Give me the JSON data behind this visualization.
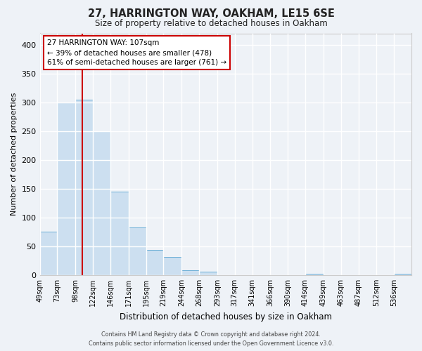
{
  "title": "27, HARRINGTON WAY, OAKHAM, LE15 6SE",
  "subtitle": "Size of property relative to detached houses in Oakham",
  "xlabel": "Distribution of detached houses by size in Oakham",
  "ylabel": "Number of detached properties",
  "bin_labels": [
    "49sqm",
    "73sqm",
    "98sqm",
    "122sqm",
    "146sqm",
    "171sqm",
    "195sqm",
    "219sqm",
    "244sqm",
    "268sqm",
    "293sqm",
    "317sqm",
    "341sqm",
    "366sqm",
    "390sqm",
    "414sqm",
    "439sqm",
    "463sqm",
    "487sqm",
    "512sqm",
    "536sqm"
  ],
  "bin_edges": [
    49,
    73,
    98,
    122,
    146,
    171,
    195,
    219,
    244,
    268,
    293,
    317,
    341,
    366,
    390,
    414,
    439,
    463,
    487,
    512,
    536,
    560
  ],
  "bar_heights": [
    75,
    300,
    305,
    250,
    145,
    83,
    44,
    32,
    9,
    6,
    0,
    0,
    0,
    0,
    0,
    2,
    0,
    0,
    0,
    0,
    2
  ],
  "bar_color": "#ccdff0",
  "bar_edge_color": "#6aaed6",
  "property_line_x": 107,
  "property_line_color": "#cc0000",
  "ylim": [
    0,
    420
  ],
  "yticks": [
    0,
    50,
    100,
    150,
    200,
    250,
    300,
    350,
    400
  ],
  "annotation_text": "27 HARRINGTON WAY: 107sqm\n← 39% of detached houses are smaller (478)\n61% of semi-detached houses are larger (761) →",
  "annotation_box_facecolor": "#ffffff",
  "annotation_box_edgecolor": "#cc0000",
  "footer_line1": "Contains HM Land Registry data © Crown copyright and database right 2024.",
  "footer_line2": "Contains public sector information licensed under the Open Government Licence v3.0.",
  "bg_color": "#eef2f7",
  "grid_color": "#ffffff",
  "spine_color": "#cccccc"
}
